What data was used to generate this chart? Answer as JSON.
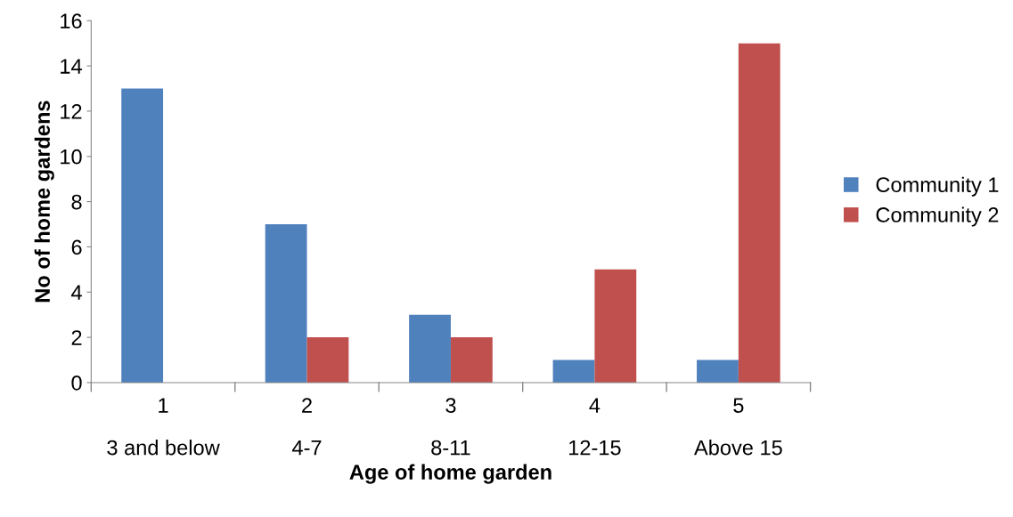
{
  "chart_data": {
    "type": "bar",
    "xlabel": "Age of home garden",
    "ylabel": "No of home gardens",
    "categories": [
      "1\n\n3 and below",
      "2\n\n4-7",
      "3\n\n8-11",
      "4\n\n12-15",
      "5\n\nAbove 15"
    ],
    "series": [
      {
        "name": "Community 1",
        "color": "#4f81bd",
        "values": [
          13,
          7,
          3,
          1,
          1
        ]
      },
      {
        "name": "Community 2",
        "color": "#c0504d",
        "values": [
          0,
          2,
          2,
          5,
          15
        ]
      }
    ],
    "ylim": [
      0,
      16
    ],
    "yticks": [
      0,
      2,
      4,
      6,
      8,
      10,
      12,
      14,
      16
    ],
    "grid": false,
    "legend": "right"
  }
}
